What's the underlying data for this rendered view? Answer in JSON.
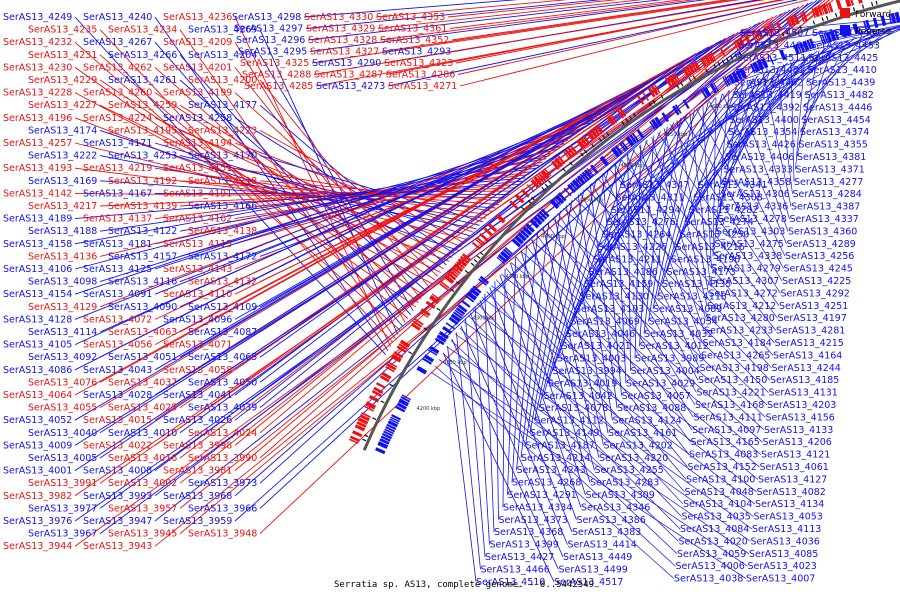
{
  "caption": "Serratia sp. AS13, complete genome. - 0..5442549",
  "legend": [
    {
      "label": "Forward",
      "color": "#ee1111"
    },
    {
      "label": "Reverse",
      "color": "#1111ee"
    }
  ],
  "colors": {
    "forward": "#ee1111",
    "reverse": "#1111ee",
    "backbone": "#555555"
  },
  "ticks": [
    "4850 kbp",
    "4800 kbp",
    "4750 kbp",
    "4700 kbp",
    "4650 kbp",
    "4600 kbp",
    "4550 kbp",
    "4500 kbp",
    "4450 kbp",
    "4400 kbp",
    "4350 kbp",
    "4300 kbp",
    "4250 kbp",
    "4200 kbp"
  ],
  "left_labels": [
    {
      "text": "SerAS13_4249",
      "s": "r"
    },
    {
      "text": "SerAS13_4240",
      "s": "r"
    },
    {
      "text": "SerAS13_4236",
      "s": "f"
    },
    {
      "text": "SerAS13_4235",
      "s": "f"
    },
    {
      "text": "SerAS13_4234",
      "s": "f"
    },
    {
      "text": "SerAS13_4269",
      "s": "r"
    },
    {
      "text": "SerAS13_4232",
      "s": "f"
    },
    {
      "text": "SerAS13_4267",
      "s": "r"
    },
    {
      "text": "SerAS13_4209",
      "s": "f"
    },
    {
      "text": "SerAS13_4231",
      "s": "f"
    },
    {
      "text": "SerAS13_4266",
      "s": "r"
    },
    {
      "text": "SerAS13_4204",
      "s": "r"
    },
    {
      "text": "SerAS13_4230",
      "s": "f"
    },
    {
      "text": "SerAS13_4262",
      "s": "f"
    },
    {
      "text": "SerAS13_4201",
      "s": "f"
    },
    {
      "text": "SerAS13_4229",
      "s": "f"
    },
    {
      "text": "SerAS13_4261",
      "s": "r"
    },
    {
      "text": "SerAS13_4200",
      "s": "f"
    },
    {
      "text": "SerAS13_4228",
      "s": "f"
    },
    {
      "text": "SerAS13_4260",
      "s": "f"
    },
    {
      "text": "SerAS13_4199",
      "s": "f"
    },
    {
      "text": "SerAS13_4227",
      "s": "f"
    },
    {
      "text": "SerAS13_4259",
      "s": "f"
    },
    {
      "text": "SerAS13_4177",
      "s": "r"
    },
    {
      "text": "SerAS13_4196",
      "s": "f"
    },
    {
      "text": "SerAS13_4224",
      "s": "f"
    },
    {
      "text": "SerAS13_4258",
      "s": "r"
    },
    {
      "text": "SerAS13_4174",
      "s": "r"
    },
    {
      "text": "SerAS13_4195",
      "s": "f"
    },
    {
      "text": "SerAS13_4223",
      "s": "f"
    },
    {
      "text": "SerAS13_4257",
      "s": "f"
    },
    {
      "text": "SerAS13_4171",
      "s": "r"
    },
    {
      "text": "SerAS13_4194",
      "s": "f"
    },
    {
      "text": "SerAS13_4222",
      "s": "r"
    },
    {
      "text": "SerAS13_4253",
      "s": "r"
    },
    {
      "text": "SerAS13_4170",
      "s": "r"
    },
    {
      "text": "SerAS13_4193",
      "s": "f"
    },
    {
      "text": "SerAS13_4219",
      "s": "f"
    },
    {
      "text": "SerAS13_4151",
      "s": "f"
    },
    {
      "text": "SerAS13_4169",
      "s": "r"
    },
    {
      "text": "SerAS13_4192",
      "s": "f"
    },
    {
      "text": "SerAS13_4218",
      "s": "f"
    },
    {
      "text": "SerAS13_4142",
      "s": "f"
    },
    {
      "text": "SerAS13_4167",
      "s": "r"
    },
    {
      "text": "SerAS13_4191",
      "s": "f"
    },
    {
      "text": "SerAS13_4217",
      "s": "f"
    },
    {
      "text": "SerAS13_4139",
      "s": "f"
    },
    {
      "text": "SerAS13_4166",
      "s": "r"
    },
    {
      "text": "SerAS13_4189",
      "s": "r"
    },
    {
      "text": "SerAS13_4137",
      "s": "f"
    },
    {
      "text": "SerAS13_4162",
      "s": "f"
    },
    {
      "text": "SerAS13_4188",
      "s": "r"
    },
    {
      "text": "SerAS13_4122",
      "s": "r"
    },
    {
      "text": "SerAS13_4138",
      "s": "f"
    },
    {
      "text": "SerAS13_4158",
      "s": "r"
    },
    {
      "text": "SerAS13_4181",
      "s": "r"
    },
    {
      "text": "SerAS13_4115",
      "s": "f"
    },
    {
      "text": "SerAS13_4136",
      "s": "f"
    },
    {
      "text": "SerAS13_4157",
      "s": "r"
    },
    {
      "text": "SerAS13_4172",
      "s": "r"
    },
    {
      "text": "SerAS13_4106",
      "s": "r"
    },
    {
      "text": "SerAS13_4125",
      "s": "r"
    },
    {
      "text": "SerAS13_4143",
      "s": "f"
    },
    {
      "text": "SerAS13_4098",
      "s": "r"
    },
    {
      "text": "SerAS13_4116",
      "s": "r"
    },
    {
      "text": "SerAS13_4132",
      "s": "f"
    },
    {
      "text": "SerAS13_4154",
      "s": "r"
    },
    {
      "text": "SerAS13_4091",
      "s": "r"
    },
    {
      "text": "SerAS13_4110",
      "s": "f"
    },
    {
      "text": "SerAS13_4129",
      "s": "f"
    },
    {
      "text": "SerAS13_4090",
      "s": "r"
    },
    {
      "text": "SerAS13_4109",
      "s": "r"
    },
    {
      "text": "SerAS13_4128",
      "s": "r"
    },
    {
      "text": "SerAS13_4072",
      "s": "f"
    },
    {
      "text": "SerAS13_4096",
      "s": "r"
    },
    {
      "text": "SerAS13_4114",
      "s": "r"
    },
    {
      "text": "SerAS13_4063",
      "s": "f"
    },
    {
      "text": "SerAS13_4087",
      "s": "r"
    },
    {
      "text": "SerAS13_4105",
      "s": "r"
    },
    {
      "text": "SerAS13_4056",
      "s": "f"
    },
    {
      "text": "SerAS13_4071",
      "s": "f"
    },
    {
      "text": "SerAS13_4092",
      "s": "r"
    },
    {
      "text": "SerAS13_4051",
      "s": "r"
    },
    {
      "text": "SerAS13_4065",
      "s": "r"
    },
    {
      "text": "SerAS13_4086",
      "s": "r"
    },
    {
      "text": "SerAS13_4043",
      "s": "r"
    },
    {
      "text": "SerAS13_4058",
      "s": "f"
    },
    {
      "text": "SerAS13_4076",
      "s": "f"
    },
    {
      "text": "SerAS13_4037",
      "s": "f"
    },
    {
      "text": "SerAS13_4050",
      "s": "r"
    },
    {
      "text": "SerAS13_4064",
      "s": "f"
    },
    {
      "text": "SerAS13_4028",
      "s": "r"
    },
    {
      "text": "SerAS13_4041",
      "s": "r"
    },
    {
      "text": "SerAS13_4055",
      "s": "f"
    },
    {
      "text": "SerAS13_4025",
      "s": "f"
    },
    {
      "text": "SerAS13_4039",
      "s": "r"
    },
    {
      "text": "SerAS13_4052",
      "s": "r"
    },
    {
      "text": "SerAS13_4015",
      "s": "f"
    },
    {
      "text": "SerAS13_4026",
      "s": "r"
    },
    {
      "text": "SerAS13_4040",
      "s": "r"
    },
    {
      "text": "SerAS13_4010",
      "s": "r"
    },
    {
      "text": "SerAS13_4024",
      "s": "f"
    },
    {
      "text": "SerAS13_4009",
      "s": "r"
    },
    {
      "text": "SerAS13_4022",
      "s": "f"
    },
    {
      "text": "SerAS13_3998",
      "s": "f"
    },
    {
      "text": "SerAS13_4005",
      "s": "r"
    },
    {
      "text": "SerAS13_4016",
      "s": "f"
    },
    {
      "text": "SerAS13_3990",
      "s": "f"
    },
    {
      "text": "SerAS13_4001",
      "s": "r"
    },
    {
      "text": "SerAS13_4008",
      "s": "r"
    },
    {
      "text": "SerAS13_3981",
      "s": "f"
    },
    {
      "text": "SerAS13_3991",
      "s": "f"
    },
    {
      "text": "SerAS13_4002",
      "s": "f"
    },
    {
      "text": "SerAS13_3973",
      "s": "r"
    },
    {
      "text": "SerAS13_3982",
      "s": "f"
    },
    {
      "text": "SerAS13_3993",
      "s": "r"
    },
    {
      "text": "SerAS13_3968",
      "s": "r"
    },
    {
      "text": "SerAS13_3977",
      "s": "r"
    },
    {
      "text": "SerAS13_3957",
      "s": "f"
    },
    {
      "text": "SerAS13_3966",
      "s": "r"
    },
    {
      "text": "SerAS13_3976",
      "s": "r"
    },
    {
      "text": "SerAS13_3947",
      "s": "r"
    },
    {
      "text": "SerAS13_3959",
      "s": "r"
    },
    {
      "text": "SerAS13_3967",
      "s": "r"
    },
    {
      "text": "SerAS13_3945",
      "s": "f"
    },
    {
      "text": "SerAS13_3948",
      "s": "f"
    },
    {
      "text": "SerAS13_3944",
      "s": "f"
    },
    {
      "text": "SerAS13_3943",
      "s": "f"
    }
  ],
  "top_labels": [
    {
      "text": "SerAS13_4298",
      "s": "r"
    },
    {
      "text": "SerAS13_4330",
      "s": "f"
    },
    {
      "text": "SerAS13_4353",
      "s": "f"
    },
    {
      "text": "SerAS13_4297",
      "s": "r"
    },
    {
      "text": "SerAS13_4329",
      "s": "f"
    },
    {
      "text": "SerAS13_4361",
      "s": "f"
    },
    {
      "text": "SerAS13_4296",
      "s": "r"
    },
    {
      "text": "SerAS13_4328",
      "s": "f"
    },
    {
      "text": "SerAS13_4352",
      "s": "f"
    },
    {
      "text": "SerAS13_4295",
      "s": "r"
    },
    {
      "text": "SerAS13_4327",
      "s": "f"
    },
    {
      "text": "SerAS13_4293",
      "s": "r"
    },
    {
      "text": "SerAS13_4325",
      "s": "f"
    },
    {
      "text": "SerAS13_4290",
      "s": "r"
    },
    {
      "text": "SerAS13_4323",
      "s": "f"
    },
    {
      "text": "SerAS13_4288",
      "s": "f"
    },
    {
      "text": "SerAS13_4287",
      "s": "f"
    },
    {
      "text": "SerAS13_4286",
      "s": "f"
    },
    {
      "text": "SerAS13_4285",
      "s": "f"
    },
    {
      "text": "SerAS13_4273",
      "s": "r"
    },
    {
      "text": "SerAS13_4271",
      "s": "f"
    }
  ],
  "inner_labels": [
    "SerAS13_4347",
    "SerAS13_4341",
    "SerAS13_4311",
    "SerAS13_4308",
    "SerAS13_4294",
    "SerAS13_4282",
    "SerAS13_4276",
    "SerAS13_4274",
    "SerAS13_4264",
    "SerAS13_4250",
    "SerAS13_4226",
    "SerAS13_4216",
    "SerAS13_4211",
    "SerAS13_4190",
    "SerAS13_4186",
    "SerAS13_4173",
    "SerAS13_4159",
    "SerAS13_4135",
    "SerAS13_4130",
    "SerAS13_4118",
    "SerAS13_4103",
    "SerAS13_4089",
    "SerAS13_4069",
    "SerAS13_4054",
    "SerAS13_4046",
    "SerAS13_4032",
    "SerAS13_4021",
    "SerAS13_4012",
    "SerAS13_4003",
    "SerAS13_3989",
    "SerAS13_3994",
    "SerAS13_4004",
    "SerAS13_4019",
    "SerAS13_4029",
    "SerAS13_4042",
    "SerAS13_4057",
    "SerAS13_4078",
    "SerAS13_4088",
    "SerAS13_4112",
    "SerAS13_4124",
    "SerAS13_4149",
    "SerAS13_4161",
    "SerAS13_4187",
    "SerAS13_4202",
    "SerAS13_4214",
    "SerAS13_4220",
    "SerAS13_4243",
    "SerAS13_4255",
    "SerAS13_4268",
    "SerAS13_4283",
    "SerAS13_4291",
    "SerAS13_4309",
    "SerAS13_4334",
    "SerAS13_4346",
    "SerAS13_4373",
    "SerAS13_4386",
    "SerAS13_4368",
    "SerAS13_4383",
    "SerAS13_4399",
    "SerAS13_4414",
    "SerAS13_4427",
    "SerAS13_4449",
    "SerAS13_4466",
    "SerAS13_4499",
    "SerAS13_4510",
    "SerAS13_4517"
  ],
  "right_labels": [
    "SerAS13_4507",
    "SerAS13_4480",
    "SerAS13_4464",
    "SerAS13_4453",
    "SerAS13_4511",
    "SerAS13_4425",
    "SerAS13_4481",
    "SerAS13_4410",
    "SerAS13_4462",
    "SerAS13_4439",
    "SerAS13_4419",
    "SerAS13_4482",
    "SerAS13_4392",
    "SerAS13_4446",
    "SerAS13_4400",
    "SerAS13_4454",
    "SerAS13_4354",
    "SerAS13_4374",
    "SerAS13_4426",
    "SerAS13_4355",
    "SerAS13_4406",
    "SerAS13_4381",
    "SerAS13_4333",
    "SerAS13_4371",
    "SerAS13_4358",
    "SerAS13_4277",
    "SerAS13_4306",
    "SerAS13_4284",
    "SerAS13_4336",
    "SerAS13_4387",
    "SerAS13_4278",
    "SerAS13_4337",
    "SerAS13_4303",
    "SerAS13_4360",
    "SerAS13_4275",
    "SerAS13_4289",
    "SerAS13_4338",
    "SerAS13_4256",
    "SerAS13_4279",
    "SerAS13_4245",
    "SerAS13_4307",
    "SerAS13_4225",
    "SerAS13_4272",
    "SerAS13_4292",
    "SerAS13_4212",
    "SerAS13_4251",
    "SerAS13_4280",
    "SerAS13_4197",
    "SerAS13_4233",
    "SerAS13_4281",
    "SerAS13_4184",
    "SerAS13_4215",
    "SerAS13_4265",
    "SerAS13_4164",
    "SerAS13_4198",
    "SerAS13_4244",
    "SerAS13_4150",
    "SerAS13_4185",
    "SerAS13_4221",
    "SerAS13_4131",
    "SerAS13_4168",
    "SerAS13_4203",
    "SerAS13_4111",
    "SerAS13_4156",
    "SerAS13_4097",
    "SerAS13_4133",
    "SerAS13_4165",
    "SerAS13_4206",
    "SerAS13_4083",
    "SerAS13_4121",
    "SerAS13_4152",
    "SerAS13_4061",
    "SerAS13_4100",
    "SerAS13_4127",
    "SerAS13_4048",
    "SerAS13_4082",
    "SerAS13_4104",
    "SerAS13_4134",
    "SerAS13_4035",
    "SerAS13_4053",
    "SerAS13_4084",
    "SerAS13_4113",
    "SerAS13_4020",
    "SerAS13_4036",
    "SerAS13_4059",
    "SerAS13_4085",
    "SerAS13_4006",
    "SerAS13_4023",
    "SerAS13_4038",
    "SerAS13_4007"
  ]
}
